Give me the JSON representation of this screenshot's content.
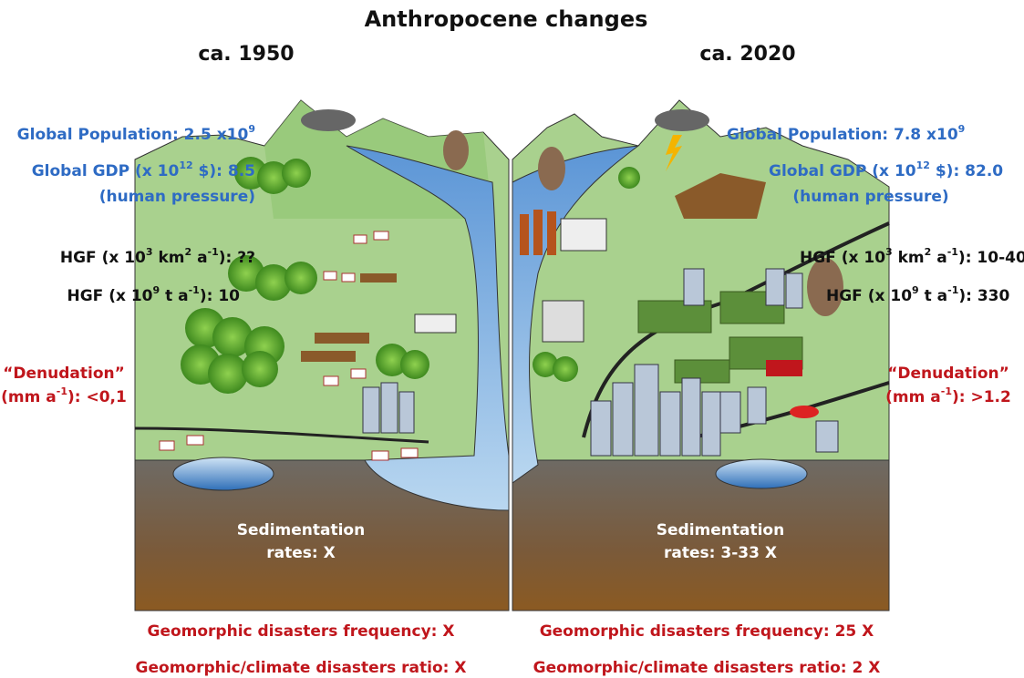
{
  "title": "Anthropocene changes",
  "left": {
    "heading": "ca. 1950",
    "population": [
      "Global Population: 2.5 x10",
      "9"
    ],
    "gdp": [
      "Global GDP (x 10",
      "12",
      " $): 8.5"
    ],
    "pressure": [
      "(human pressure)"
    ],
    "hgf_area": [
      "HGF (x 10",
      "3",
      " km",
      "2",
      " a",
      "-1",
      "): ??"
    ],
    "hgf_mass": [
      "HGF (x 10",
      "9",
      " t a",
      "-1",
      "): 10"
    ],
    "denudation": [
      "“Denudation”"
    ],
    "denudation_value": [
      "(mm a",
      "-1",
      "): <0,1"
    ],
    "sedimentation": [
      "Sedimentation"
    ],
    "sedimentation_value": [
      "rates: X"
    ],
    "disasters_frequency": [
      "Geomorphic disasters frequency: X"
    ],
    "disasters_ratio": [
      "Geomorphic/climate disasters ratio: X"
    ]
  },
  "right": {
    "heading": "ca. 2020",
    "population": [
      "Global Population: 7.8 x10",
      "9"
    ],
    "gdp": [
      "Global GDP (x 10",
      "12",
      " $): 82.0"
    ],
    "pressure": [
      "(human pressure)"
    ],
    "hgf_area": [
      "HGF (x 10",
      "3",
      " km",
      "2",
      " a",
      "-1",
      "): 10-40"
    ],
    "hgf_mass": [
      "HGF (x 10",
      "9",
      " t a",
      "-1",
      "): 330"
    ],
    "denudation": [
      "“Denudation”"
    ],
    "denudation_value": [
      "(mm a",
      "-1",
      "): >1.2"
    ],
    "sedimentation": [
      "Sedimentation"
    ],
    "sedimentation_value": [
      "rates: 3-33 X"
    ],
    "disasters_frequency": [
      "Geomorphic disasters frequency: 25 X"
    ],
    "disasters_ratio": [
      "Geomorphic/climate disasters ratio: 2 X"
    ]
  }
}
